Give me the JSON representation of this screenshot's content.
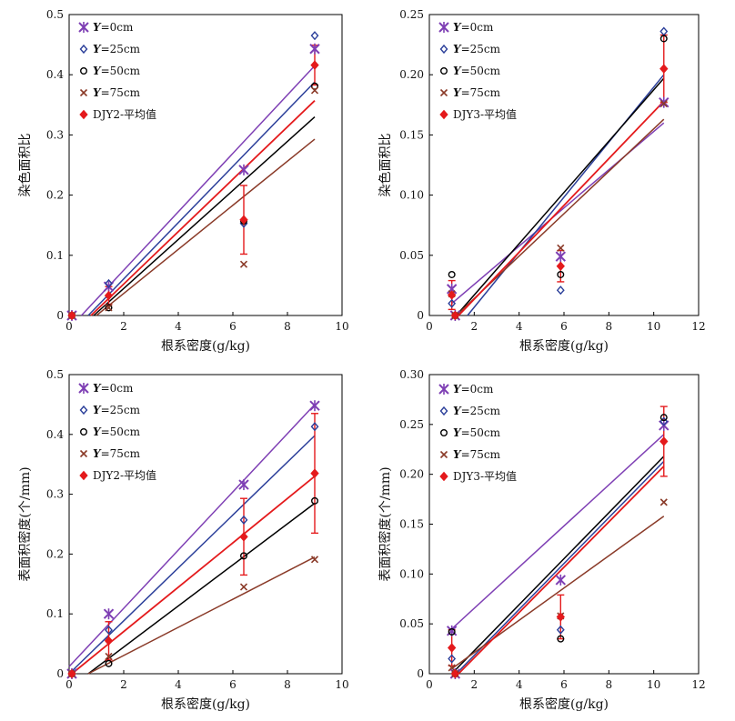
{
  "colors": {
    "Y0": "#7e3fb4",
    "Y25": "#2b3f9a",
    "Y50": "#000000",
    "Y75": "#8a3a28",
    "avg": "#e41a1c"
  },
  "chart_data": [
    {
      "type": "scatter",
      "xlabel": "根系密度(g/kg)",
      "ylabel": "染色面积比",
      "xlim": [
        0,
        10
      ],
      "ylim": [
        0,
        0.5
      ],
      "xticks": [
        "0",
        "2",
        "4",
        "6",
        "8",
        "10"
      ],
      "yticks": [
        "0",
        "0.1",
        "0.2",
        "0.3",
        "0.4",
        "0.5"
      ],
      "legend": [
        "Y=0cm",
        "Y=25cm",
        "Y=50cm",
        "Y=75cm",
        "DJY2-平均值"
      ],
      "series": [
        {
          "name": "Y=0cm",
          "marker": "asterisk",
          "x": [
            0.1,
            1.45,
            6.4,
            9.0
          ],
          "y": [
            0.0,
            0.048,
            0.242,
            0.443
          ],
          "fit": [
            [
              0.45,
              0.0
            ],
            [
              9.0,
              0.415
            ]
          ]
        },
        {
          "name": "Y=25cm",
          "marker": "diamond",
          "x": [
            0.1,
            1.45,
            6.4,
            9.0
          ],
          "y": [
            0.0,
            0.053,
            0.153,
            0.465
          ],
          "fit": [
            [
              0.7,
              0.0
            ],
            [
              9.0,
              0.388
            ]
          ]
        },
        {
          "name": "Y=50cm",
          "marker": "circle",
          "x": [
            0.1,
            1.45,
            6.4,
            9.0
          ],
          "y": [
            0.0,
            0.013,
            0.157,
            0.381
          ],
          "fit": [
            [
              0.9,
              0.0
            ],
            [
              9.0,
              0.33
            ]
          ]
        },
        {
          "name": "Y=75cm",
          "marker": "x",
          "x": [
            0.1,
            1.45,
            6.4,
            9.0
          ],
          "y": [
            0.0,
            0.013,
            0.085,
            0.374
          ],
          "fit": [
            [
              1.0,
              0.0
            ],
            [
              9.0,
              0.293
            ]
          ]
        },
        {
          "name": "DJY2-平均值",
          "marker": "filled-diamond",
          "x": [
            0.1,
            1.45,
            6.4,
            9.0
          ],
          "y": [
            0.0,
            0.033,
            0.159,
            0.416
          ],
          "err": [
            0.0,
            0.015,
            0.057,
            0.033
          ],
          "fit": [
            [
              0.8,
              0.0
            ],
            [
              9.0,
              0.357
            ]
          ]
        }
      ]
    },
    {
      "type": "scatter",
      "xlabel": "根系密度(g/kg)",
      "ylabel": "染色面积比",
      "xlim": [
        0,
        12
      ],
      "ylim": [
        0,
        0.25
      ],
      "xticks": [
        "0",
        "2",
        "4",
        "6",
        "8",
        "10",
        "12"
      ],
      "yticks": [
        "0",
        "0.05",
        "0.10",
        "0.15",
        "0.20",
        "0.25"
      ],
      "legend": [
        "Y=0cm",
        "Y=25cm",
        "Y=50cm",
        "Y=75cm",
        "DJY3-平均值"
      ],
      "series": [
        {
          "name": "Y=0cm",
          "marker": "asterisk",
          "x": [
            1.0,
            1.15,
            5.85,
            10.45
          ],
          "y": [
            0.022,
            0.0,
            0.049,
            0.177
          ],
          "fit": [
            [
              1.0,
              0.01
            ],
            [
              10.45,
              0.16
            ]
          ]
        },
        {
          "name": "Y=25cm",
          "marker": "diamond",
          "x": [
            1.0,
            1.15,
            5.85,
            10.45
          ],
          "y": [
            0.01,
            0.0,
            0.021,
            0.236
          ],
          "fit": [
            [
              1.7,
              0.0
            ],
            [
              10.45,
              0.2
            ]
          ]
        },
        {
          "name": "Y=50cm",
          "marker": "circle",
          "x": [
            1.0,
            1.15,
            5.85,
            10.45
          ],
          "y": [
            0.034,
            0.0,
            0.034,
            0.23
          ],
          "fit": [
            [
              1.2,
              0.0
            ],
            [
              10.45,
              0.197
            ]
          ]
        },
        {
          "name": "Y=75cm",
          "marker": "x",
          "x": [
            1.0,
            1.15,
            5.85,
            10.45
          ],
          "y": [
            0.018,
            0.0,
            0.056,
            0.176
          ],
          "fit": [
            [
              1.2,
              0.0
            ],
            [
              10.45,
              0.163
            ]
          ]
        },
        {
          "name": "DJY3-平均值",
          "marker": "filled-diamond",
          "x": [
            1.0,
            1.15,
            5.85,
            10.45
          ],
          "y": [
            0.017,
            0.0,
            0.041,
            0.205
          ],
          "err": [
            0.012,
            0.0,
            0.013,
            0.028
          ],
          "fit": [
            [
              1.3,
              0.0
            ],
            [
              10.45,
              0.178
            ]
          ]
        }
      ]
    },
    {
      "type": "scatter",
      "xlabel": "根系密度(g/kg)",
      "ylabel": "表面积密度(个/mm)",
      "xlim": [
        0,
        10
      ],
      "ylim": [
        0,
        0.5
      ],
      "xticks": [
        "0",
        "2",
        "4",
        "6",
        "8",
        "10"
      ],
      "yticks": [
        "0",
        "0.1",
        "0.2",
        "0.3",
        "0.4",
        "0.5"
      ],
      "legend": [
        "Y=0cm",
        "Y=25cm",
        "Y=50cm",
        "Y=75cm",
        "DJY2-平均值"
      ],
      "series": [
        {
          "name": "Y=0cm",
          "marker": "asterisk",
          "x": [
            0.1,
            1.45,
            6.4,
            9.0
          ],
          "y": [
            0.0,
            0.1,
            0.316,
            0.448
          ],
          "fit": [
            [
              0.0,
              0.012
            ],
            [
              9.0,
              0.45
            ]
          ]
        },
        {
          "name": "Y=25cm",
          "marker": "diamond",
          "x": [
            0.1,
            1.45,
            6.4,
            9.0
          ],
          "y": [
            0.0,
            0.073,
            0.257,
            0.413
          ],
          "fit": [
            [
              0.0,
              0.0
            ],
            [
              9.0,
              0.398
            ]
          ]
        },
        {
          "name": "Y=50cm",
          "marker": "circle",
          "x": [
            0.1,
            1.45,
            6.4,
            9.0
          ],
          "y": [
            0.0,
            0.017,
            0.197,
            0.289
          ],
          "fit": [
            [
              0.7,
              0.0
            ],
            [
              9.0,
              0.285
            ]
          ]
        },
        {
          "name": "Y=75cm",
          "marker": "x",
          "x": [
            0.1,
            1.45,
            6.4,
            9.0
          ],
          "y": [
            0.0,
            0.029,
            0.145,
            0.191
          ],
          "fit": [
            [
              0.7,
              0.0
            ],
            [
              9.0,
              0.195
            ]
          ]
        },
        {
          "name": "DJY2-平均值",
          "marker": "filled-diamond",
          "x": [
            0.1,
            1.45,
            6.4,
            9.0
          ],
          "y": [
            0.0,
            0.055,
            0.229,
            0.335
          ],
          "err": [
            0.0,
            0.032,
            0.064,
            0.1
          ],
          "fit": [
            [
              0.1,
              0.0
            ],
            [
              9.0,
              0.33
            ]
          ]
        }
      ]
    },
    {
      "type": "scatter",
      "xlabel": "根系密度(g/kg)",
      "ylabel": "表面积密度(个/mm)",
      "xlim": [
        0,
        12
      ],
      "ylim": [
        0,
        0.3
      ],
      "xticks": [
        "0",
        "2",
        "4",
        "6",
        "8",
        "10",
        "12"
      ],
      "yticks": [
        "0",
        "0.05",
        "0.10",
        "0.15",
        "0.20",
        "0.25",
        "0.30"
      ],
      "legend": [
        "Y=0cm",
        "Y=25cm",
        "Y=50cm",
        "Y=75cm",
        "DJY3-平均值"
      ],
      "series": [
        {
          "name": "Y=0cm",
          "marker": "asterisk",
          "x": [
            1.0,
            1.15,
            5.85,
            10.45
          ],
          "y": [
            0.043,
            0.0,
            0.094,
            0.249
          ],
          "fit": [
            [
              1.0,
              0.045
            ],
            [
              10.45,
              0.24
            ]
          ]
        },
        {
          "name": "Y=25cm",
          "marker": "diamond",
          "x": [
            1.0,
            1.15,
            5.85,
            10.45
          ],
          "y": [
            0.015,
            0.0,
            0.044,
            0.253
          ],
          "fit": [
            [
              1.2,
              0.0
            ],
            [
              10.45,
              0.213
            ]
          ]
        },
        {
          "name": "Y=50cm",
          "marker": "circle",
          "x": [
            1.0,
            1.15,
            5.85,
            10.45
          ],
          "y": [
            0.042,
            0.0,
            0.035,
            0.257
          ],
          "fit": [
            [
              1.0,
              0.0
            ],
            [
              10.45,
              0.218
            ]
          ]
        },
        {
          "name": "Y=75cm",
          "marker": "x",
          "x": [
            1.0,
            1.15,
            5.85,
            10.45
          ],
          "y": [
            0.006,
            0.0,
            0.058,
            0.172
          ],
          "fit": [
            [
              1.0,
              0.005
            ],
            [
              10.45,
              0.158
            ]
          ]
        },
        {
          "name": "DJY3-平均值",
          "marker": "filled-diamond",
          "x": [
            1.0,
            1.15,
            5.85,
            10.45
          ],
          "y": [
            0.026,
            0.0,
            0.057,
            0.233
          ],
          "err": [
            0.018,
            0.0,
            0.022,
            0.035
          ],
          "fit": [
            [
              1.3,
              0.0
            ],
            [
              10.45,
              0.208
            ]
          ]
        }
      ]
    }
  ]
}
